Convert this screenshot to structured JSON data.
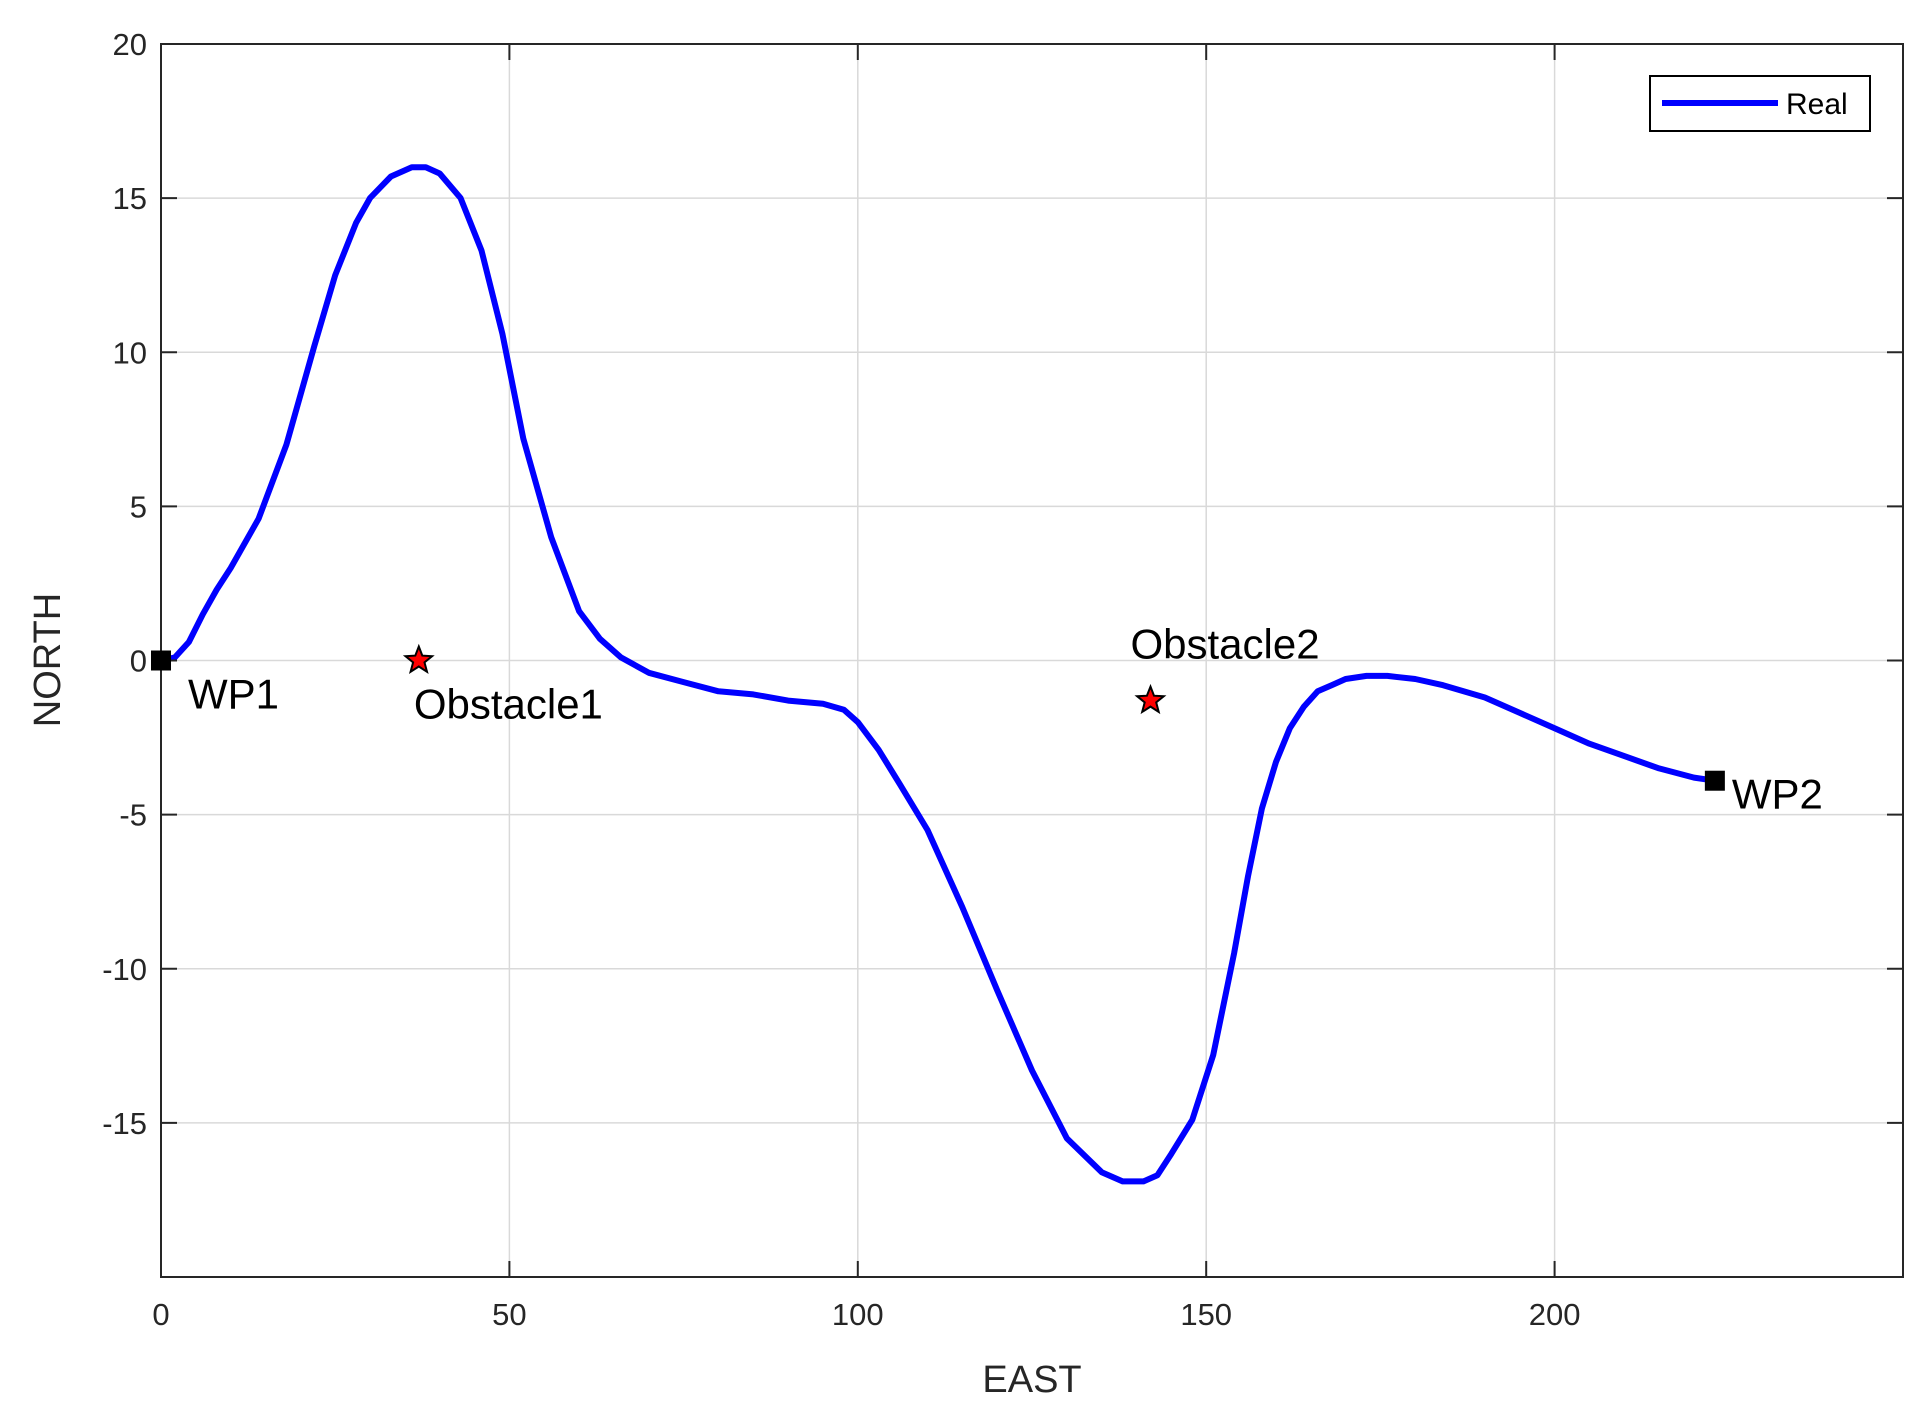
{
  "chart_data": {
    "type": "line",
    "title": "",
    "xlabel": "EAST",
    "ylabel": "NORTH",
    "xlim": [
      0,
      250
    ],
    "ylim": [
      -20,
      20
    ],
    "xticks": [
      0,
      50,
      100,
      150,
      200
    ],
    "yticks": [
      20,
      15,
      10,
      5,
      0,
      -5,
      -10,
      -15
    ],
    "grid": true,
    "legend": {
      "position": "top-right",
      "entries": [
        "Real"
      ]
    },
    "colors": {
      "line": "#0000ff",
      "obstacle_fill": "#ff0000",
      "marker": "#000000",
      "grid": "#d9d9d9",
      "axes": "#262626"
    },
    "series": [
      {
        "name": "Real",
        "x": [
          0,
          2,
          4,
          6,
          8,
          10,
          14,
          18,
          22,
          25,
          28,
          30,
          33,
          36,
          38,
          40,
          43,
          46,
          49,
          52,
          56,
          60,
          63,
          66,
          70,
          75,
          80,
          85,
          90,
          95,
          98,
          100,
          103,
          106,
          110,
          115,
          120,
          125,
          130,
          135,
          138,
          141,
          143,
          145,
          148,
          151,
          154,
          156,
          158,
          160,
          162,
          164,
          166,
          168,
          170,
          173,
          176,
          180,
          184,
          190,
          195,
          200,
          205,
          210,
          215,
          220,
          223
        ],
        "y": [
          0,
          0.1,
          0.6,
          1.5,
          2.3,
          3.0,
          4.6,
          7.0,
          10.2,
          12.5,
          14.2,
          15.0,
          15.7,
          16.0,
          16.0,
          15.8,
          15.0,
          13.3,
          10.6,
          7.2,
          4.0,
          1.6,
          0.7,
          0.1,
          -0.4,
          -0.7,
          -1.0,
          -1.1,
          -1.3,
          -1.4,
          -1.6,
          -2.0,
          -2.9,
          -4.0,
          -5.5,
          -8.0,
          -10.7,
          -13.3,
          -15.5,
          -16.6,
          -16.9,
          -16.9,
          -16.7,
          -16.0,
          -14.9,
          -12.8,
          -9.5,
          -7.0,
          -4.8,
          -3.3,
          -2.2,
          -1.5,
          -1.0,
          -0.8,
          -0.6,
          -0.5,
          -0.5,
          -0.6,
          -0.8,
          -1.2,
          -1.7,
          -2.2,
          -2.7,
          -3.1,
          -3.5,
          -3.8,
          -3.9
        ]
      }
    ],
    "waypoints": [
      {
        "label": "WP1",
        "x": 0,
        "y": 0
      },
      {
        "label": "WP2",
        "x": 223,
        "y": -3.9
      }
    ],
    "obstacles": [
      {
        "label": "Obstacle1",
        "x": 37,
        "y": 0
      },
      {
        "label": "Obstacle2",
        "x": 142,
        "y": -1.3
      }
    ]
  }
}
